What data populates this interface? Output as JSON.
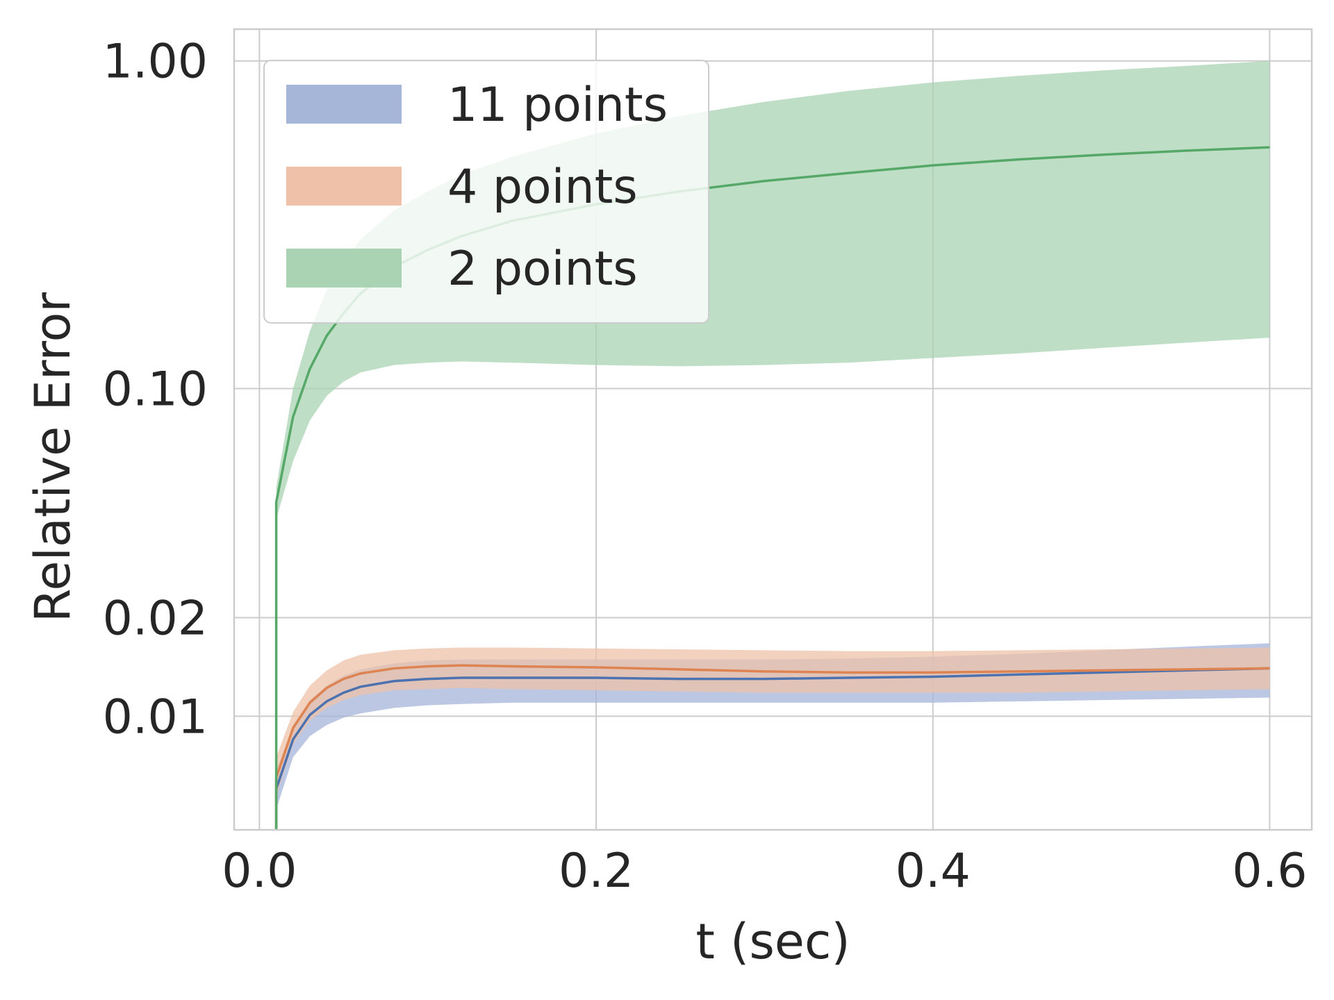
{
  "chart_data": {
    "type": "line",
    "title": "",
    "xlabel": "t (sec)",
    "ylabel": "Relative Error",
    "yscale": "log",
    "xlim": [
      -0.015,
      0.625
    ],
    "ylim": [
      0.0045,
      1.25
    ],
    "grid": true,
    "legend_position": "top-left",
    "x_ticks": [
      {
        "value": 0.0,
        "label": "0.0",
        "color": "#262626"
      },
      {
        "value": 0.2,
        "label": "0.2",
        "color": "#c44e52"
      },
      {
        "value": 0.4,
        "label": "0.4",
        "color": "#64b5cd"
      },
      {
        "value": 0.6,
        "label": "0.6",
        "color": "#ffa500"
      }
    ],
    "y_ticks": [
      {
        "value": 1.0,
        "label": "1.00"
      },
      {
        "value": 0.1,
        "label": "0.10"
      },
      {
        "value": 0.02,
        "label": "0.02"
      },
      {
        "value": 0.01,
        "label": "0.01"
      }
    ],
    "x": [
      0.01,
      0.02,
      0.03,
      0.04,
      0.05,
      0.06,
      0.08,
      0.1,
      0.12,
      0.15,
      0.2,
      0.25,
      0.3,
      0.35,
      0.4,
      0.45,
      0.5,
      0.55,
      0.6
    ],
    "series": [
      {
        "name": "11 points",
        "color": "#4c72b0",
        "fill": "#a5b6d9",
        "mean": [
          0.006,
          0.0085,
          0.0101,
          0.0111,
          0.0118,
          0.0123,
          0.0128,
          0.013,
          0.0131,
          0.0131,
          0.0131,
          0.013,
          0.013,
          0.0131,
          0.0132,
          0.0134,
          0.0136,
          0.0138,
          0.014
        ],
        "lower": [
          0.0052,
          0.0075,
          0.0087,
          0.0094,
          0.0099,
          0.0102,
          0.0106,
          0.0108,
          0.0109,
          0.011,
          0.011,
          0.011,
          0.011,
          0.011,
          0.011,
          0.0111,
          0.0112,
          0.0113,
          0.0114
        ],
        "upper": [
          0.0068,
          0.0094,
          0.0112,
          0.0124,
          0.0133,
          0.0139,
          0.0145,
          0.0148,
          0.0149,
          0.0149,
          0.0149,
          0.0149,
          0.0149,
          0.015,
          0.0152,
          0.0155,
          0.0159,
          0.0163,
          0.0167
        ]
      },
      {
        "name": "4 points",
        "color": "#dd8452",
        "fill": "#eec1a8",
        "mean": [
          0.0065,
          0.0092,
          0.011,
          0.0122,
          0.013,
          0.0135,
          0.014,
          0.0142,
          0.0143,
          0.0142,
          0.0141,
          0.0139,
          0.0137,
          0.0136,
          0.0136,
          0.0137,
          0.0138,
          0.0139,
          0.014
        ],
        "lower": [
          0.0057,
          0.0082,
          0.0097,
          0.0106,
          0.0112,
          0.0116,
          0.012,
          0.0121,
          0.0122,
          0.0121,
          0.012,
          0.0119,
          0.0118,
          0.0118,
          0.0118,
          0.0118,
          0.0119,
          0.012,
          0.0121
        ],
        "upper": [
          0.0075,
          0.0103,
          0.0124,
          0.0138,
          0.0148,
          0.0154,
          0.0159,
          0.0161,
          0.0162,
          0.0162,
          0.0161,
          0.016,
          0.0159,
          0.0158,
          0.0158,
          0.0159,
          0.016,
          0.0161,
          0.0162
        ]
      },
      {
        "name": "2 points",
        "color": "#55a868",
        "fill": "#a9d3b3",
        "mean": [
          0.045,
          0.082,
          0.115,
          0.145,
          0.17,
          0.195,
          0.235,
          0.265,
          0.292,
          0.325,
          0.365,
          0.4,
          0.43,
          0.455,
          0.48,
          0.5,
          0.517,
          0.532,
          0.545
        ],
        "lower": [
          0.04,
          0.06,
          0.08,
          0.095,
          0.105,
          0.112,
          0.118,
          0.12,
          0.121,
          0.12,
          0.118,
          0.117,
          0.118,
          0.12,
          0.124,
          0.128,
          0.133,
          0.138,
          0.143
        ],
        "upper": [
          0.05,
          0.1,
          0.15,
          0.2,
          0.245,
          0.285,
          0.35,
          0.4,
          0.45,
          0.51,
          0.6,
          0.68,
          0.75,
          0.81,
          0.86,
          0.9,
          0.935,
          0.965,
          1.0
        ]
      }
    ]
  },
  "colors": {
    "grid": "#cccccc",
    "frame": "#cccccc",
    "text": "#262626",
    "legend_bg": "#ffffff",
    "legend_border": "#cccccc"
  }
}
